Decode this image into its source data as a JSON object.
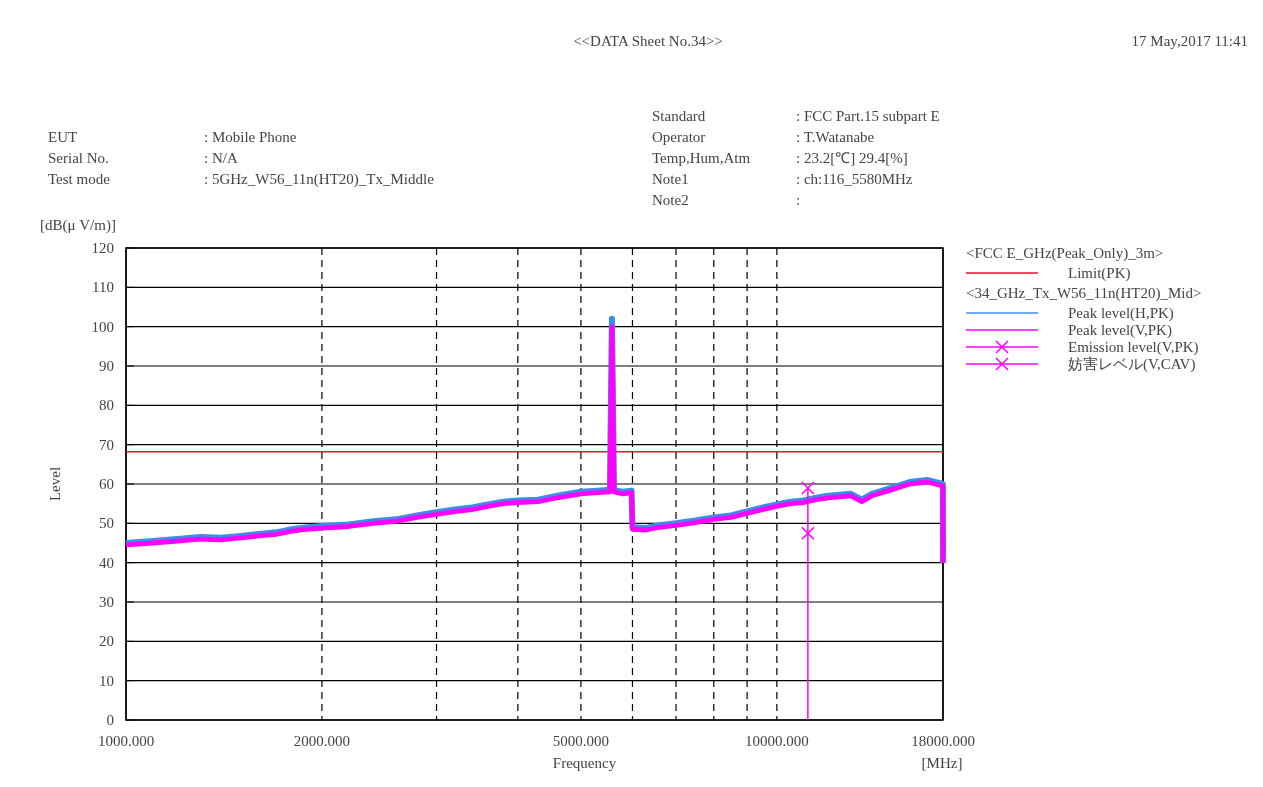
{
  "chart_data": {
    "type": "line",
    "title": "<<DATA Sheet No.34>>",
    "xlabel": "Frequency",
    "ylabel": "Level",
    "legend_title": "<FCC E_GHz(Peak_Only)_3m>",
    "annotations": [
      "17 May,2017 11:41",
      "EUT\t: Mobile Phone",
      "Serial No.\t: N/A",
      "Test mode\t: 5GHz_W56_11n(HT20)_Tx_Middle",
      "Standard\t: FCC Part.15 subpart E",
      "Operator\t: T.Watanabe",
      "Temp,Hum,Atm\t: 23.2[℃] 29.4[%]",
      "Note1\t: ch:116_5580MHz",
      "Note2\t:",
      "[dB(μ V/m)]",
      "[MHz]",
      "<34_GHz_Tx_W56_11n(HT20)_Mid>"
    ],
    "log": "x",
    "grid": true,
    "legend": "right",
    "xlim": [
      1000,
      18000
    ],
    "xticks": [
      {
        "value": 1000,
        "label": "1000.000"
      },
      {
        "value": 2000,
        "label": "2000.000"
      },
      {
        "value": 3000,
        "label": null
      },
      {
        "value": 4000,
        "label": null
      },
      {
        "value": 5000,
        "label": "5000.000"
      },
      {
        "value": 6000,
        "label": null
      },
      {
        "value": 7000,
        "label": null
      },
      {
        "value": 8000,
        "label": null
      },
      {
        "value": 9000,
        "label": null
      },
      {
        "value": 10000,
        "label": "10000.000"
      },
      {
        "value": 18000,
        "label": "18000.000"
      }
    ],
    "ylim": [
      0,
      120
    ],
    "yticks": [
      0,
      10,
      20,
      30,
      40,
      50,
      60,
      70,
      80,
      90,
      100,
      110,
      120
    ],
    "ref_lines": [
      {
        "axis": "y",
        "value": 68.2,
        "label": "Limit(PK)",
        "color": "#e8102a"
      }
    ],
    "series": [
      {
        "name": "Peak level(H,PK)",
        "color": "#3a8ee6",
        "x": [
          1000,
          1100,
          1200,
          1300,
          1400,
          1500,
          1600,
          1700,
          1800,
          1900,
          2000,
          2200,
          2400,
          2600,
          2800,
          3000,
          3200,
          3400,
          3600,
          3800,
          4000,
          4300,
          4600,
          5000,
          5300,
          5540,
          5580,
          5620,
          5800,
          5980,
          6000,
          6300,
          6600,
          7000,
          7500,
          8000,
          8500,
          9000,
          9500,
          10000,
          10500,
          11000,
          11500,
          12000,
          13000,
          13500,
          14000,
          15000,
          16000,
          17000,
          17990,
          18000
        ],
        "values": [
          45,
          45.5,
          46,
          46.5,
          46.3,
          46.8,
          47.3,
          47.7,
          48.5,
          49,
          49.3,
          49.7,
          50.5,
          51,
          52,
          52.8,
          53.5,
          54,
          54.8,
          55.5,
          55.8,
          56,
          57,
          58,
          58.3,
          58.5,
          102,
          58.5,
          58,
          58.3,
          49,
          48.8,
          49.5,
          50,
          50.7,
          51.5,
          52,
          53,
          54,
          54.8,
          55.5,
          55.8,
          56.5,
          57,
          57.5,
          56,
          57.5,
          59,
          60.5,
          61,
          60,
          40
        ]
      },
      {
        "name": "Peak level(V,PK)",
        "color": "#ff00ff",
        "x": [
          1000,
          1100,
          1200,
          1300,
          1400,
          1500,
          1600,
          1700,
          1800,
          1900,
          2000,
          2200,
          2400,
          2600,
          2800,
          3000,
          3200,
          3400,
          3600,
          3800,
          4000,
          4300,
          4600,
          5000,
          5300,
          5540,
          5580,
          5620,
          5800,
          5980,
          6000,
          6300,
          6600,
          7000,
          7500,
          8000,
          8500,
          9000,
          9500,
          10000,
          10500,
          11000,
          11500,
          12000,
          13000,
          13500,
          14000,
          15000,
          16000,
          17000,
          17990,
          18000
        ],
        "values": [
          44.5,
          45,
          45.5,
          46,
          45.8,
          46.3,
          46.8,
          47.2,
          48,
          48.5,
          48.8,
          49.2,
          50,
          50.5,
          51.5,
          52.3,
          53,
          53.5,
          54.3,
          55,
          55.3,
          55.5,
          56.5,
          57.5,
          57.8,
          58,
          100,
          58,
          57.5,
          57.8,
          48.5,
          48.3,
          49,
          49.5,
          50.2,
          51,
          51.5,
          52.5,
          53.5,
          54.3,
          55,
          55.3,
          56,
          56.5,
          57,
          55.5,
          57,
          58.5,
          60,
          60.5,
          59.5,
          40
        ]
      },
      {
        "name": "Emission level(V,PK)",
        "type": "lollipop",
        "color": "#ff00ff",
        "marker": "cross",
        "x": [
          11160
        ],
        "values": [
          59
        ]
      },
      {
        "name": "妨害レベル(V,CAV)",
        "type": "scatter",
        "color": "#ff00ff",
        "marker": "cross",
        "x": [
          11160
        ],
        "values": [
          47.5
        ]
      }
    ]
  }
}
